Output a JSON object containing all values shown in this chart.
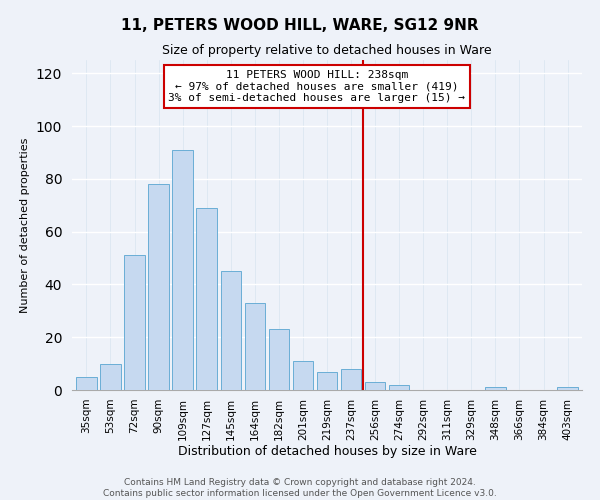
{
  "title": "11, PETERS WOOD HILL, WARE, SG12 9NR",
  "subtitle": "Size of property relative to detached houses in Ware",
  "xlabel": "Distribution of detached houses by size in Ware",
  "ylabel": "Number of detached properties",
  "bar_labels": [
    "35sqm",
    "53sqm",
    "72sqm",
    "90sqm",
    "109sqm",
    "127sqm",
    "145sqm",
    "164sqm",
    "182sqm",
    "201sqm",
    "219sqm",
    "237sqm",
    "256sqm",
    "274sqm",
    "292sqm",
    "311sqm",
    "329sqm",
    "348sqm",
    "366sqm",
    "384sqm",
    "403sqm"
  ],
  "bar_values": [
    5,
    10,
    51,
    78,
    91,
    69,
    45,
    33,
    23,
    11,
    7,
    8,
    3,
    2,
    0,
    0,
    0,
    1,
    0,
    0,
    1
  ],
  "bar_color": "#c6d9f0",
  "bar_edge_color": "#6aaed6",
  "vline_color": "#cc0000",
  "vline_x": 11.5,
  "ylim": [
    0,
    125
  ],
  "yticks": [
    0,
    20,
    40,
    60,
    80,
    100,
    120
  ],
  "annotation_title": "11 PETERS WOOD HILL: 238sqm",
  "annotation_line1": "← 97% of detached houses are smaller (419)",
  "annotation_line2": "3% of semi-detached houses are larger (15) →",
  "annotation_box_color": "#ffffff",
  "annotation_box_edge": "#cc0000",
  "footer_line1": "Contains HM Land Registry data © Crown copyright and database right 2024.",
  "footer_line2": "Contains public sector information licensed under the Open Government Licence v3.0.",
  "bg_color": "#eef2f9",
  "title_fontsize": 11,
  "subtitle_fontsize": 9,
  "xlabel_fontsize": 9,
  "ylabel_fontsize": 8,
  "tick_fontsize": 7.5,
  "footer_fontsize": 6.5,
  "annot_fontsize": 8
}
